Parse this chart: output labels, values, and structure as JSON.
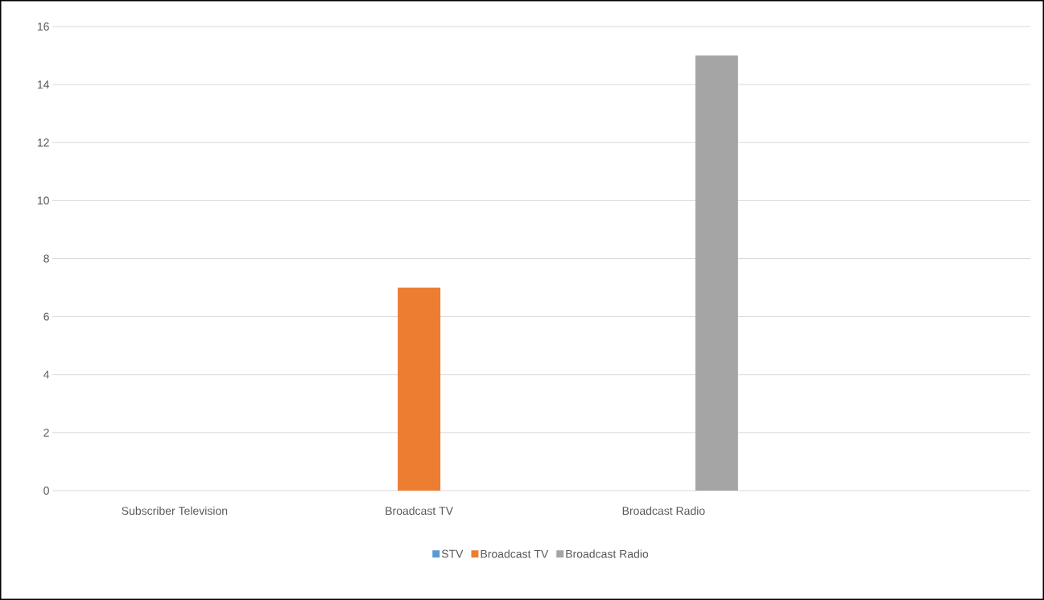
{
  "chart_data": {
    "type": "bar",
    "categories": [
      "Subscriber Television",
      "Broadcast TV",
      "Broadcast Radio",
      null
    ],
    "series": [
      {
        "name": "STV",
        "color": "#5b9bd5",
        "values": [
          0,
          null,
          null,
          null
        ]
      },
      {
        "name": "Broadcast TV",
        "color": "#ed7d31",
        "values": [
          null,
          7,
          null,
          null
        ]
      },
      {
        "name": "Broadcast Radio",
        "color": "#a5a5a5",
        "values": [
          null,
          null,
          15,
          null
        ]
      }
    ],
    "ylim": [
      0,
      16
    ],
    "yticks": [
      0,
      2,
      4,
      6,
      8,
      10,
      12,
      14,
      16
    ],
    "grid": "y",
    "legend": "bottom"
  }
}
